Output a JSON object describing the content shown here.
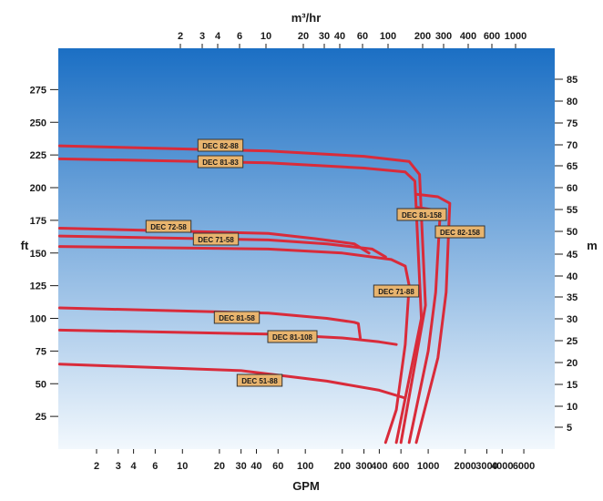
{
  "chart_data": {
    "type": "line",
    "title": "",
    "x_bottom": {
      "label": "GPM",
      "scale": "log",
      "ticks": [
        2,
        3,
        4,
        6,
        10,
        20,
        30,
        40,
        60,
        100,
        200,
        300,
        400,
        600,
        1000,
        2000,
        3000,
        4000,
        6000
      ],
      "tick_labels": [
        "2",
        "3",
        "4",
        "6",
        "10",
        "20",
        "30",
        "40",
        "60",
        "100",
        "200",
        "300",
        "400",
        "600",
        "1000",
        "2000",
        "3000",
        "4000",
        "6000"
      ],
      "range": [
        1,
        8000
      ]
    },
    "x_top": {
      "label": "m³/hr",
      "scale": "log",
      "ticks": [
        2,
        3,
        4,
        6,
        10,
        20,
        30,
        40,
        60,
        100,
        200,
        300,
        400,
        600,
        1000
      ],
      "tick_labels": [
        "2",
        "3",
        "4",
        "6",
        "10",
        "20",
        "30",
        "40",
        "60",
        "100",
        "200",
        "300",
        "400",
        "600",
        "1000"
      ]
    },
    "y_left": {
      "label": "ft",
      "ticks": [
        25,
        50,
        75,
        100,
        125,
        150,
        175,
        200,
        225,
        250,
        275
      ],
      "tick_labels": [
        "25",
        "50",
        "75",
        "100",
        "125",
        "150",
        "175",
        "200",
        "225",
        "250",
        "275"
      ],
      "range": [
        0,
        295
      ]
    },
    "y_right": {
      "label": "m",
      "ticks": [
        5,
        10,
        15,
        20,
        25,
        30,
        35,
        40,
        45,
        50,
        55,
        60,
        65,
        70,
        75,
        80,
        85
      ],
      "tick_labels": [
        "5",
        "10",
        "15",
        "20",
        "25",
        "30",
        "35",
        "40",
        "45",
        "50",
        "55",
        "60",
        "65",
        "70",
        "75",
        "80",
        "85"
      ]
    },
    "grid": false,
    "background": {
      "top": "#1b6fc4",
      "bottom": "#f2f8fd"
    },
    "line_color": "#d92b3a",
    "label_fill": "#e8b46e",
    "series": [
      {
        "name": "DEC 82-88",
        "x": [
          1,
          50,
          300,
          700,
          850,
          950,
          600
        ],
        "y": [
          232,
          228,
          224,
          220,
          210,
          110,
          5
        ]
      },
      {
        "name": "DEC 81-83",
        "x": [
          1,
          50,
          300,
          650,
          780,
          880,
          550
        ],
        "y": [
          222,
          219,
          215,
          212,
          205,
          100,
          5
        ]
      },
      {
        "name": "DEC 81-158",
        "x": [
          800,
          1100,
          1250,
          1150,
          1000,
          700
        ],
        "y": [
          185,
          183,
          180,
          120,
          75,
          5
        ]
      },
      {
        "name": "DEC 82-158",
        "x": [
          800,
          1200,
          1500,
          1400,
          1200,
          800
        ],
        "y": [
          195,
          193,
          188,
          120,
          70,
          5
        ]
      },
      {
        "name": "DEC 72-58",
        "x": [
          1,
          50,
          120,
          250,
          330
        ],
        "y": [
          169,
          165,
          161,
          157,
          150
        ]
      },
      {
        "name": "DEC 71-58",
        "x": [
          1,
          50,
          150,
          350,
          450
        ],
        "y": [
          163,
          160,
          157,
          153,
          147
        ]
      },
      {
        "name": "DEC 71-88",
        "x": [
          1,
          50,
          200,
          500,
          650,
          700,
          650,
          550,
          450
        ],
        "y": [
          155,
          153,
          150,
          145,
          140,
          125,
          80,
          30,
          5
        ]
      },
      {
        "name": "DEC 81-58",
        "x": [
          1,
          50,
          150,
          250,
          270,
          280
        ],
        "y": [
          108,
          104,
          100,
          97,
          96,
          85
        ]
      },
      {
        "name": "DEC 81-108",
        "x": [
          1,
          50,
          200,
          400,
          550
        ],
        "y": [
          91,
          88,
          85,
          82,
          80
        ]
      },
      {
        "name": "DEC 51-88",
        "x": [
          1,
          30,
          150,
          400,
          650
        ],
        "y": [
          65,
          60,
          52,
          45,
          39
        ]
      }
    ]
  }
}
